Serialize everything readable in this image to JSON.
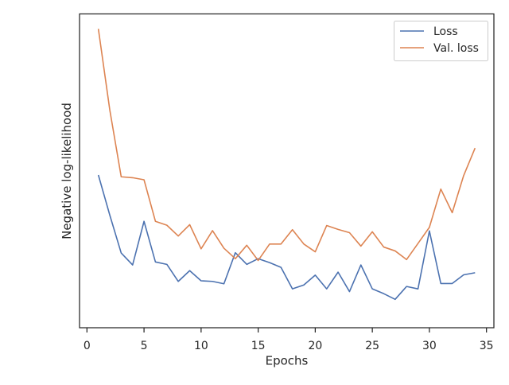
{
  "chart_data": {
    "type": "line",
    "xlabel": "Epochs",
    "ylabel": "Negative log-likelihood",
    "xlim": [
      -0.65,
      35.65
    ],
    "ylim": [
      -0.05,
      1.0
    ],
    "xticks": [
      0,
      5,
      10,
      15,
      20,
      25,
      30,
      35
    ],
    "xtick_labels": [
      "0",
      "5",
      "10",
      "15",
      "20",
      "25",
      "30",
      "35"
    ],
    "grid": false,
    "legend_position": "top-right",
    "x": [
      1,
      2,
      3,
      4,
      5,
      6,
      7,
      8,
      9,
      10,
      11,
      12,
      13,
      14,
      15,
      16,
      17,
      18,
      19,
      20,
      21,
      22,
      23,
      24,
      25,
      26,
      27,
      28,
      29,
      30,
      31,
      32,
      33,
      34
    ],
    "series": [
      {
        "name": "Loss",
        "color": "#4c72b0",
        "values": [
          0.461,
          0.327,
          0.2,
          0.16,
          0.306,
          0.17,
          0.162,
          0.105,
          0.141,
          0.107,
          0.105,
          0.097,
          0.201,
          0.162,
          0.181,
          0.168,
          0.152,
          0.08,
          0.093,
          0.126,
          0.08,
          0.136,
          0.071,
          0.16,
          0.08,
          0.064,
          0.045,
          0.088,
          0.08,
          0.274,
          0.098,
          0.098,
          0.127,
          0.134
        ]
      },
      {
        "name": "Val. loss",
        "color": "#dd8452",
        "values": [
          0.95,
          0.679,
          0.455,
          0.452,
          0.445,
          0.306,
          0.293,
          0.257,
          0.295,
          0.214,
          0.275,
          0.216,
          0.181,
          0.226,
          0.175,
          0.23,
          0.23,
          0.278,
          0.23,
          0.204,
          0.292,
          0.279,
          0.268,
          0.223,
          0.271,
          0.22,
          0.207,
          0.178,
          0.232,
          0.286,
          0.414,
          0.335,
          0.459,
          0.551
        ]
      }
    ]
  }
}
